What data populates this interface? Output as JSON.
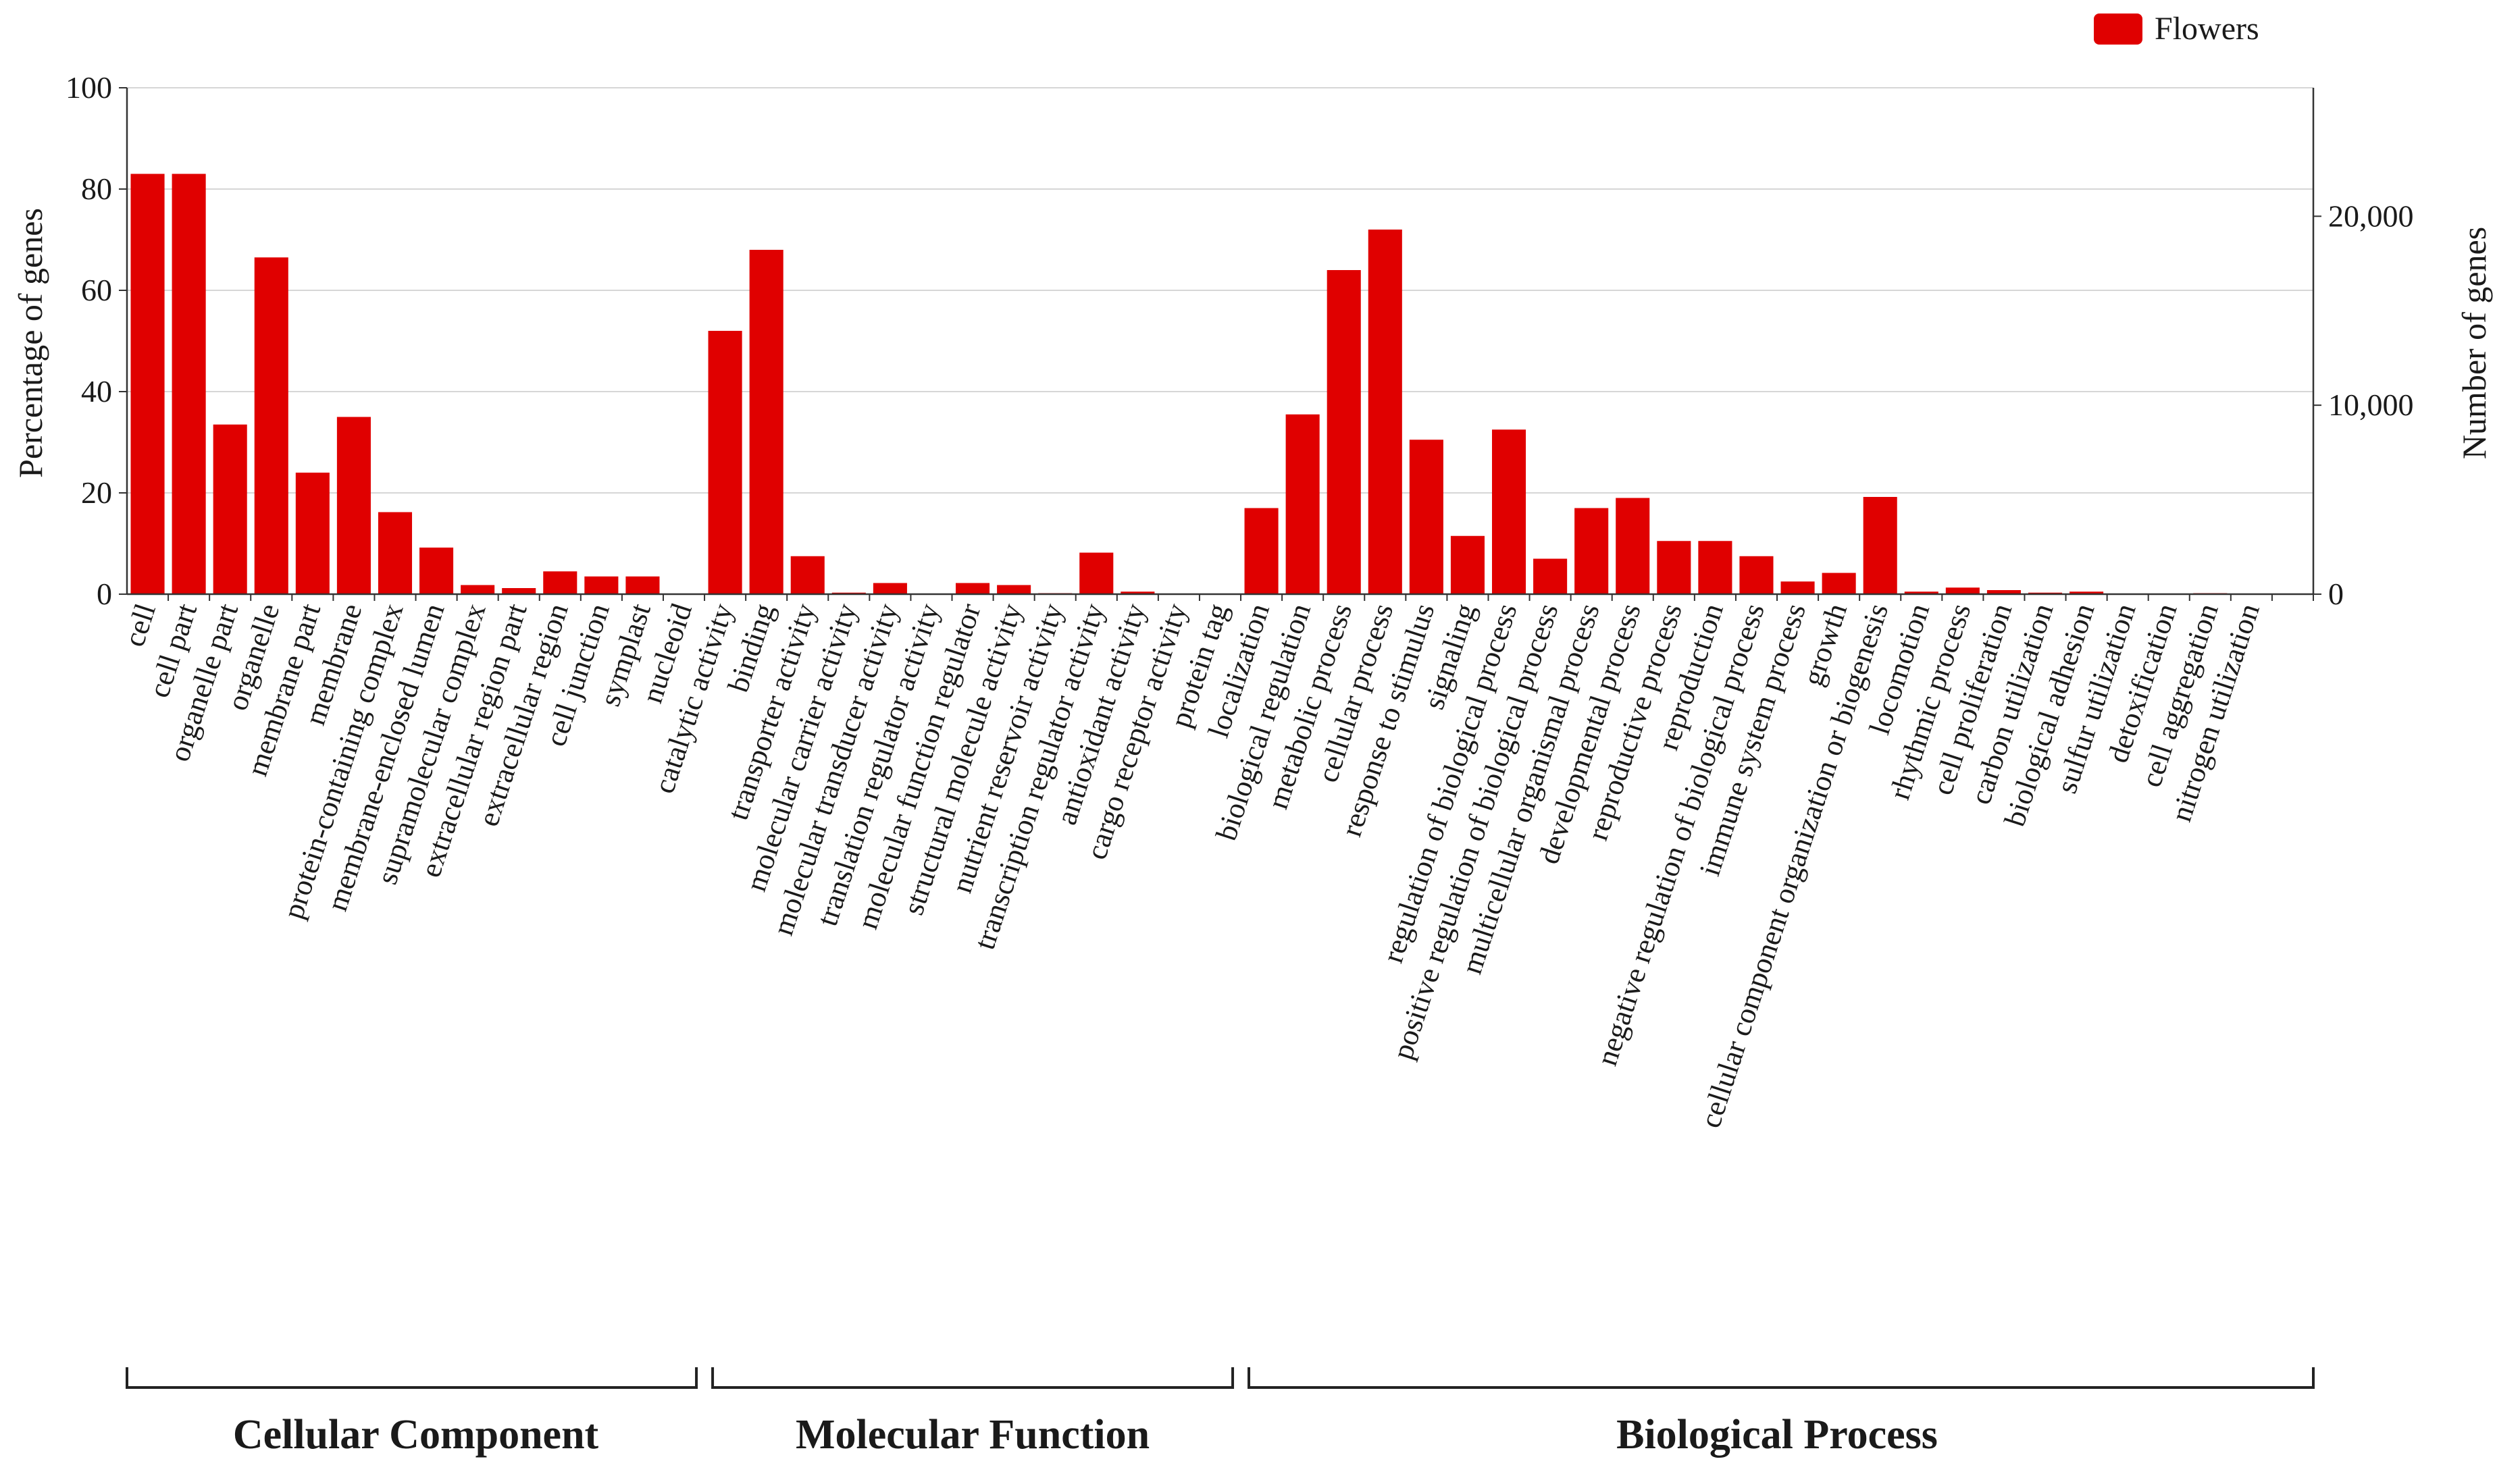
{
  "chart_data": {
    "type": "bar",
    "title": "",
    "xlabel": "",
    "ylabel": "Percentage of genes",
    "y2label": "Number of genes",
    "ylim": [
      0,
      100
    ],
    "y2lim": [
      0,
      26800
    ],
    "yticks": [
      "0",
      "20",
      "40",
      "60",
      "80",
      "100"
    ],
    "y2ticks": [
      {
        "value": 0,
        "label": "0"
      },
      {
        "value": 10000,
        "label": "10,000"
      },
      {
        "value": 20000,
        "label": "20,000"
      }
    ],
    "grid": true,
    "legend": {
      "position": "top-right",
      "color": "#e00000"
    },
    "series": [
      {
        "name": "Flowers",
        "color": "#e00000",
        "values": [
          83,
          83,
          33.5,
          66.5,
          24,
          35,
          16.2,
          9.2,
          1.8,
          1.2,
          4.5,
          3.5,
          3.5,
          0,
          52,
          68,
          7.5,
          0.3,
          2.2,
          0,
          2.2,
          1.8,
          0.2,
          8.2,
          0.5,
          0,
          0,
          17,
          35.5,
          64,
          72,
          30.5,
          11.5,
          32.5,
          7,
          17,
          19,
          10.5,
          10.5,
          7.5,
          2.5,
          4.2,
          19.2,
          0.5,
          1.3,
          0.8,
          0.3,
          0.5,
          0.1,
          0.1,
          0.2,
          0.1,
          0.1
        ]
      }
    ],
    "categories": [
      "cell",
      "cell part",
      "organelle part",
      "organelle",
      "membrane part",
      "membrane",
      "protein-containing complex",
      "membrane-enclosed lumen",
      "supramolecular complex",
      "extracellular region part",
      "extracellular region",
      "cell junction",
      "symplast",
      "nucleoid",
      "catalytic activity",
      "binding",
      "transporter activity",
      "molecular carrier activity",
      "molecular transducer activity",
      "translation regulator activity",
      "molecular function regulator",
      "structural molecule activity",
      "nutrient reservoir activity",
      "transcription regulator activity",
      "antioxidant activity",
      "cargo receptor activity",
      "protein tag",
      "localization",
      "biological regulation",
      "metabolic process",
      "cellular process",
      "response to stimulus",
      "signaling",
      "regulation of biological process",
      "positive regulation of biological process",
      "multicellular organismal process",
      "developmental process",
      "reproductive process",
      "reproduction",
      "negative regulation of biological process",
      "immune system process",
      "growth",
      "cellular component organization or biogenesis",
      "locomotion",
      "rhythmic process",
      "cell proliferation",
      "carbon utilization",
      "biological adhesion",
      "sulfur utilization",
      "detoxification",
      "cell aggregation",
      "nitrogen utilization",
      ""
    ],
    "groups": [
      {
        "label": "Cellular Component",
        "start": 0,
        "end": 13
      },
      {
        "label": "Molecular Function",
        "start": 14,
        "end": 26
      },
      {
        "label": "Biological Process",
        "start": 27,
        "end": 52
      }
    ]
  }
}
